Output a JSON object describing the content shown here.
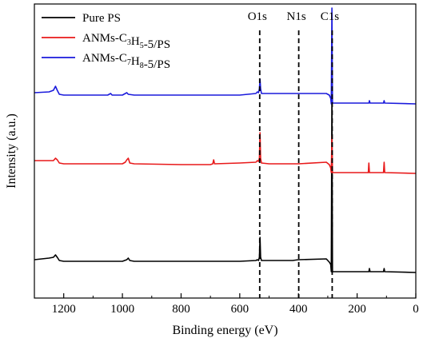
{
  "chart_data": {
    "type": "line",
    "title": "",
    "xlabel": "Binding energy (eV)",
    "ylabel": "Intensity (a.u.)",
    "xlim": [
      1300,
      0
    ],
    "x_reversed": true,
    "xticks": [
      1200,
      1000,
      800,
      600,
      400,
      200,
      0
    ],
    "xtick_labels": [
      "1200",
      "1000",
      "800",
      "600",
      "400",
      "200",
      "0"
    ],
    "y_ticks_shown": false,
    "grid": false,
    "legend_position": "top-left",
    "legend": [
      {
        "text": "Pure PS",
        "color": "#000000"
      },
      {
        "base": "ANMs-C",
        "sub1": "3",
        "mid": "H",
        "sub2": "5",
        "tail": "-5/PS",
        "color": "#e8191a"
      },
      {
        "base": "ANMs-C",
        "sub1": "7",
        "mid": "H",
        "sub2": "8",
        "tail": "-5/PS",
        "color": "#1a1adc"
      }
    ],
    "peak_labels": [
      {
        "label": "O1s",
        "x": 532
      },
      {
        "label": "N1s",
        "x": 399
      },
      {
        "label": "C1s",
        "x": 285
      }
    ],
    "series": [
      {
        "name": "Pure PS",
        "color": "#000000",
        "points": [
          [
            1300,
            325
          ],
          [
            1250,
            323
          ],
          [
            1235,
            322
          ],
          [
            1228,
            319
          ],
          [
            1222,
            322
          ],
          [
            1215,
            326
          ],
          [
            1200,
            327
          ],
          [
            1100,
            327
          ],
          [
            1000,
            327
          ],
          [
            985,
            325
          ],
          [
            980,
            323
          ],
          [
            975,
            326
          ],
          [
            960,
            327
          ],
          [
            800,
            327
          ],
          [
            700,
            327
          ],
          [
            600,
            327
          ],
          [
            545,
            326
          ],
          [
            540,
            325
          ],
          [
            536,
            326
          ],
          [
            533,
            322
          ],
          [
            531,
            297
          ],
          [
            529,
            322
          ],
          [
            526,
            326
          ],
          [
            500,
            326
          ],
          [
            420,
            326
          ],
          [
            400,
            325
          ],
          [
            305,
            324
          ],
          [
            295,
            328
          ],
          [
            290,
            331
          ],
          [
            288,
            340
          ],
          [
            286,
            112
          ],
          [
            284,
            340
          ],
          [
            282,
            340
          ],
          [
            200,
            340
          ],
          [
            160,
            340
          ],
          [
            158,
            336
          ],
          [
            156,
            340
          ],
          [
            110,
            340
          ],
          [
            108,
            336
          ],
          [
            106,
            340
          ],
          [
            0,
            341
          ]
        ]
      },
      {
        "name": "ANMs-C3H5-5/PS",
        "color": "#e8191a",
        "points": [
          [
            1300,
            201
          ],
          [
            1250,
            201
          ],
          [
            1235,
            201
          ],
          [
            1228,
            198
          ],
          [
            1222,
            200
          ],
          [
            1215,
            204
          ],
          [
            1200,
            205
          ],
          [
            1100,
            205
          ],
          [
            1000,
            205
          ],
          [
            990,
            203
          ],
          [
            985,
            200
          ],
          [
            980,
            198
          ],
          [
            975,
            204
          ],
          [
            960,
            205
          ],
          [
            800,
            206
          ],
          [
            700,
            206
          ],
          [
            692,
            205
          ],
          [
            689,
            200
          ],
          [
            686,
            205
          ],
          [
            600,
            204
          ],
          [
            545,
            203
          ],
          [
            540,
            201
          ],
          [
            536,
            202
          ],
          [
            533,
            198
          ],
          [
            531,
            166
          ],
          [
            529,
            198
          ],
          [
            526,
            204
          ],
          [
            500,
            205
          ],
          [
            420,
            205
          ],
          [
            400,
            205
          ],
          [
            305,
            203
          ],
          [
            295,
            206
          ],
          [
            290,
            210
          ],
          [
            288,
            216
          ],
          [
            286,
            170
          ],
          [
            284,
            216
          ],
          [
            282,
            216
          ],
          [
            200,
            216
          ],
          [
            162,
            216
          ],
          [
            160,
            204
          ],
          [
            158,
            216
          ],
          [
            110,
            216
          ],
          [
            108,
            203
          ],
          [
            106,
            216
          ],
          [
            0,
            217
          ]
        ]
      },
      {
        "name": "ANMs-C7H8-5/PS",
        "color": "#1a1adc",
        "points": [
          [
            1300,
            116
          ],
          [
            1250,
            115
          ],
          [
            1235,
            113
          ],
          [
            1228,
            108
          ],
          [
            1222,
            113
          ],
          [
            1215,
            118
          ],
          [
            1200,
            119
          ],
          [
            1100,
            119
          ],
          [
            1050,
            119
          ],
          [
            1040,
            117
          ],
          [
            1035,
            119
          ],
          [
            1000,
            119
          ],
          [
            990,
            117
          ],
          [
            985,
            116
          ],
          [
            980,
            118
          ],
          [
            960,
            119
          ],
          [
            800,
            119
          ],
          [
            700,
            119
          ],
          [
            600,
            119
          ],
          [
            545,
            117
          ],
          [
            540,
            115
          ],
          [
            536,
            116
          ],
          [
            533,
            111
          ],
          [
            531,
            99
          ],
          [
            529,
            111
          ],
          [
            526,
            117
          ],
          [
            500,
            117
          ],
          [
            420,
            117
          ],
          [
            400,
            117
          ],
          [
            305,
            117
          ],
          [
            295,
            119
          ],
          [
            290,
            123
          ],
          [
            288,
            130
          ],
          [
            286,
            10
          ],
          [
            284,
            129
          ],
          [
            282,
            129
          ],
          [
            200,
            129
          ],
          [
            160,
            129
          ],
          [
            158,
            126
          ],
          [
            156,
            129
          ],
          [
            110,
            129
          ],
          [
            108,
            126
          ],
          [
            106,
            129
          ],
          [
            0,
            130
          ]
        ]
      }
    ]
  }
}
